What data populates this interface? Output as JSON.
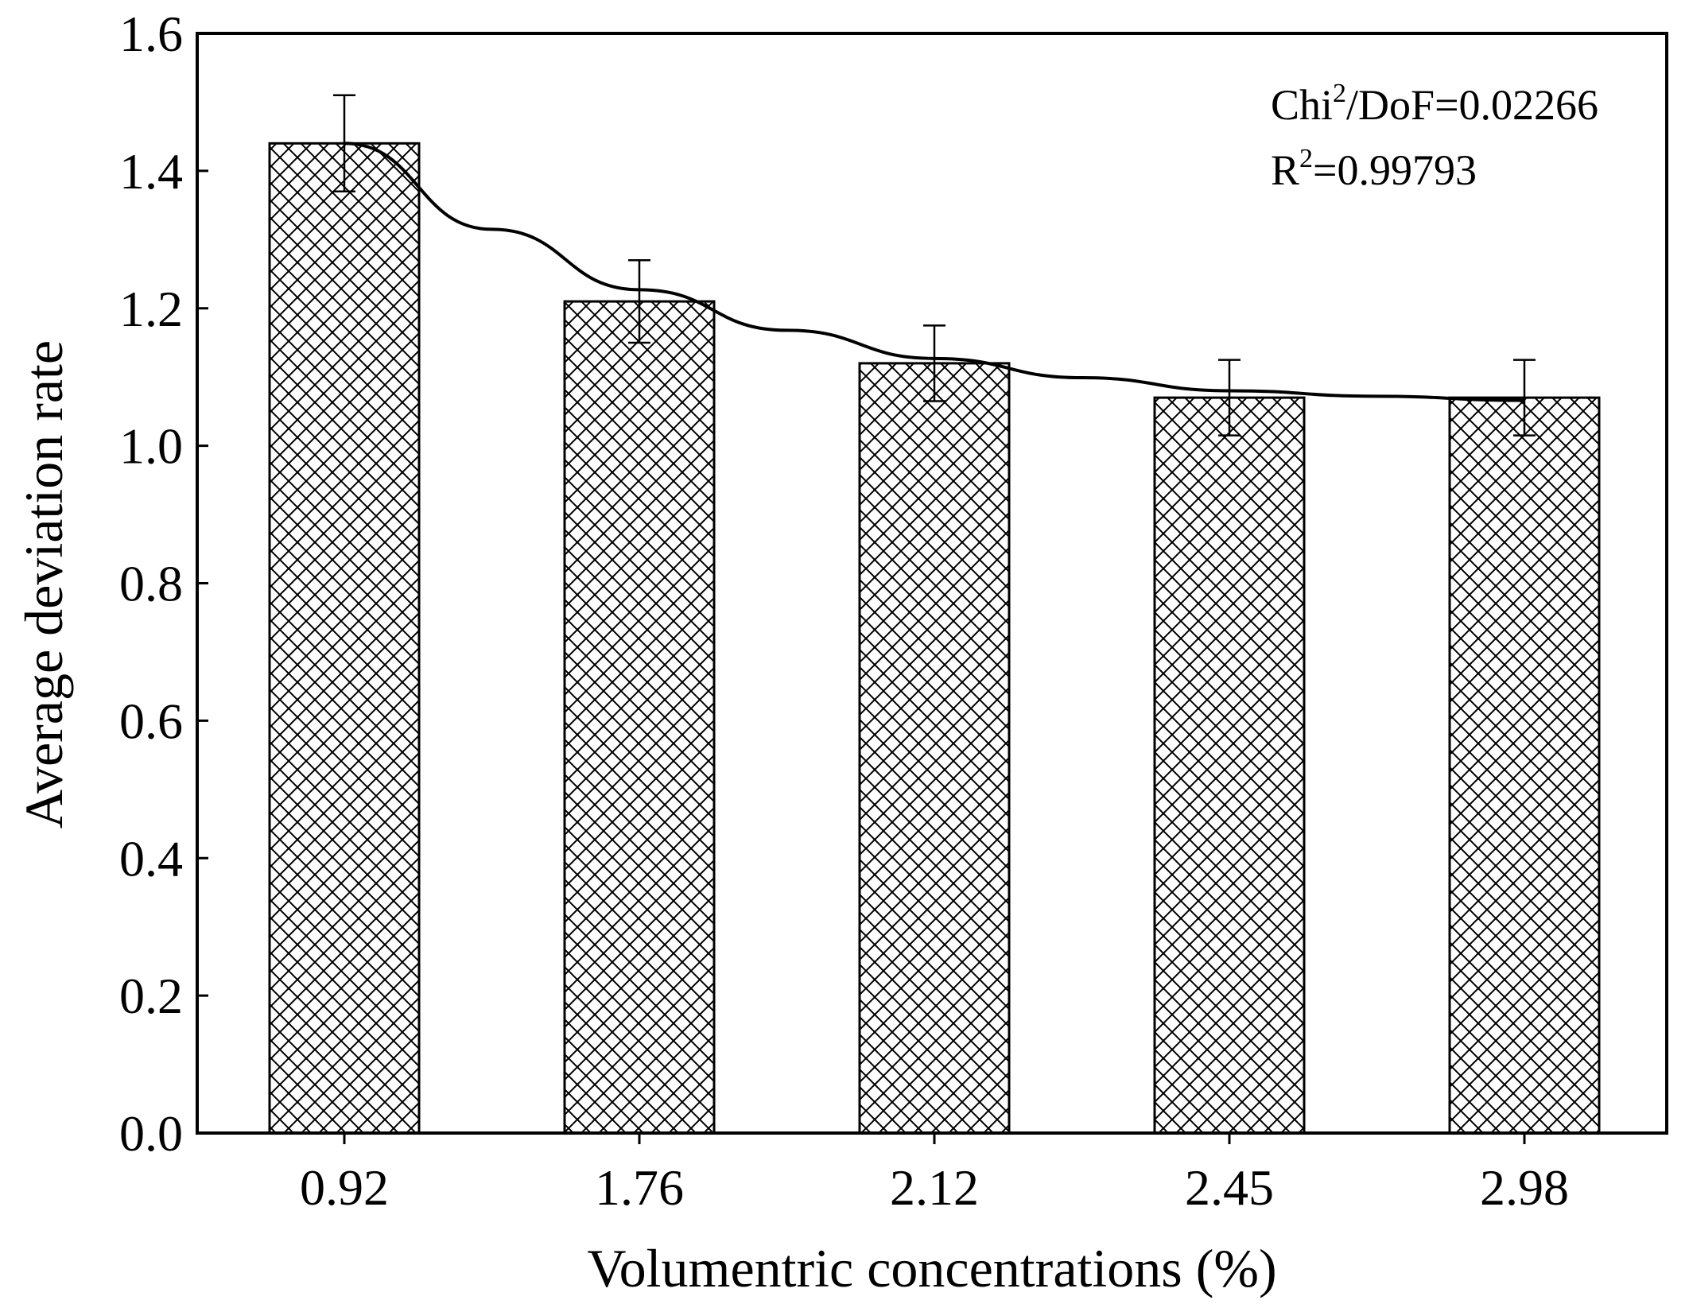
{
  "chart_data": {
    "type": "bar",
    "categories": [
      "0.92",
      "1.76",
      "2.12",
      "2.45",
      "2.98"
    ],
    "values": [
      1.44,
      1.21,
      1.12,
      1.07,
      1.07
    ],
    "error_low": [
      1.37,
      1.15,
      1.065,
      1.015,
      1.015
    ],
    "error_high": [
      1.51,
      1.27,
      1.175,
      1.125,
      1.125
    ],
    "fit_curve": {
      "x": [
        0.0,
        0.5,
        1.0,
        1.5,
        2.0,
        2.5,
        3.0,
        3.5,
        4.0
      ],
      "y": [
        1.44,
        1.315,
        1.227,
        1.168,
        1.127,
        1.099,
        1.08,
        1.072,
        1.066
      ]
    },
    "title": "",
    "xlabel": "Volumentric concentrations (%)",
    "ylabel": "Average deviation rate",
    "ylim": [
      0,
      1.6
    ],
    "yticks": [
      "0.0",
      "0.2",
      "0.4",
      "0.6",
      "0.8",
      "1.0",
      "1.2",
      "1.4",
      "1.6"
    ],
    "grid": false,
    "pattern": "crosshatch",
    "bar_fill": "#ffffff",
    "line_color": "#000000",
    "annotations": {
      "chi_prefix": "Chi",
      "chi_sup": "2",
      "chi_suffix": "/DoF=0.02266",
      "r_prefix": "R",
      "r_sup": "2",
      "r_suffix": "=0.99793"
    }
  }
}
